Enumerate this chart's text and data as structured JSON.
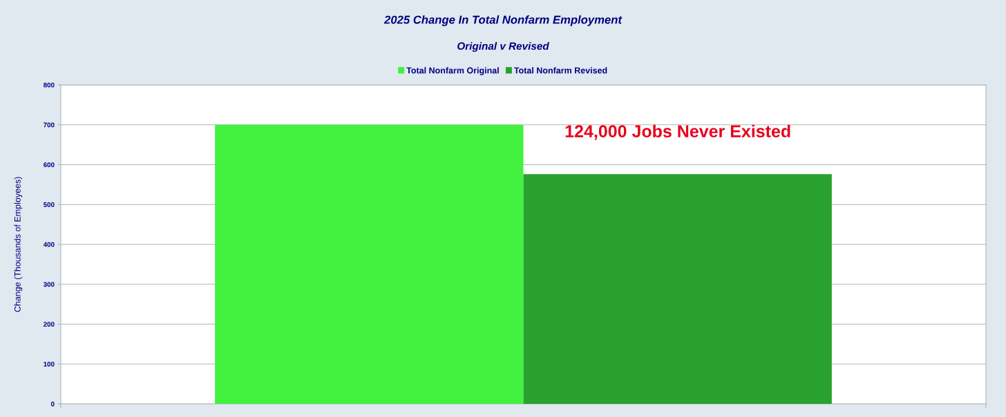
{
  "chart_data": {
    "type": "bar",
    "title": "2025 Change In Total Nonfarm Employment",
    "subtitle": "Original v Revised",
    "ylabel": "Change (Thousands of Employees)",
    "categories": [
      null
    ],
    "series": [
      {
        "name": "Total Nonfarm Original",
        "color": "#42f23f",
        "values": [
          700
        ]
      },
      {
        "name": "Total Nonfarm Revised",
        "color": "#28a12e",
        "values": [
          576
        ]
      }
    ],
    "ylim": [
      0,
      800
    ],
    "yticks": [
      0,
      100,
      200,
      300,
      400,
      500,
      600,
      700,
      800
    ],
    "grid": "y",
    "legend": "top",
    "annotations": [
      "124,000 Jobs Never Existed"
    ]
  }
}
